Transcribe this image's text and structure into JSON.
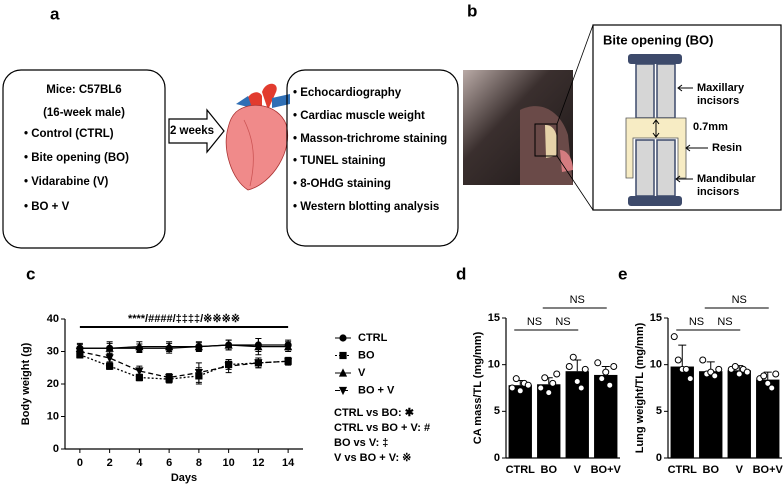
{
  "panel_labels": [
    "a",
    "b",
    "c",
    "d",
    "e"
  ],
  "diagram": {
    "mice_box": [
      "Mice: C57BL6",
      "(16-week male)",
      "• Control (CTRL)",
      "• Bite opening (BO)",
      "• Vidarabine (V)",
      "• BO + V"
    ],
    "arrow_label": "2 weeks",
    "analyses": [
      "• Echocardiography",
      "• Cardiac muscle weight",
      "• Masson-trichrome staining",
      "• TUNEL staining",
      "• 8-OHdG staining",
      "• Western blotting analysis"
    ],
    "inset": {
      "title": "Bite opening (BO)",
      "maxillary": [
        "Maxillary",
        "incisors"
      ],
      "gap": "0.7mm",
      "resin": "Resin",
      "mandibular": [
        "Mandibular",
        "incisors"
      ]
    }
  },
  "chart_data": [
    {
      "type": "line",
      "xlabel": "Days",
      "ylabel": "Body weight (g)",
      "x": [
        0,
        2,
        4,
        6,
        8,
        10,
        12,
        14
      ],
      "xlim": [
        -1,
        15
      ],
      "xticks": [
        0,
        2,
        4,
        6,
        8,
        10,
        12,
        14
      ],
      "ylim": [
        0,
        40
      ],
      "yticks": [
        0,
        10,
        20,
        30,
        40
      ],
      "annotation": "****/####/‡‡‡‡/※※※※",
      "notes": [
        "CTRL vs BO: ✱",
        "CTRL vs BO + V: #",
        "BO vs V: ‡",
        "V vs BO + V: ※"
      ],
      "series": [
        {
          "name": "CTRL",
          "color": "#000000",
          "marker": "circle",
          "dash": "solid",
          "values": [
            31,
            31,
            31,
            31,
            31.5,
            32,
            32,
            32
          ],
          "errors": [
            1.2,
            1.5,
            1.3,
            1.5,
            1.2,
            1.5,
            2,
            1.5
          ]
        },
        {
          "name": "BO",
          "color": "#000000",
          "marker": "square",
          "dash": "dotted",
          "values": [
            29,
            25.5,
            22,
            21.5,
            22.5,
            26,
            26.5,
            27
          ],
          "errors": [
            1,
            1,
            1,
            1.2,
            2.5,
            1.5,
            1.5,
            1.2
          ]
        },
        {
          "name": "V",
          "color": "#000000",
          "marker": "triangle",
          "dash": "solid",
          "values": [
            31,
            31,
            31.5,
            31.5,
            31.5,
            32,
            31.5,
            31.5
          ],
          "errors": [
            1.5,
            2,
            1.5,
            1.5,
            1.5,
            1.5,
            2.5,
            1.5
          ]
        },
        {
          "name": "BO + V",
          "color": "#000000",
          "marker": "triangle-down",
          "dash": "dashed",
          "values": [
            30,
            28,
            24,
            22,
            23.5,
            25.5,
            26.5,
            27
          ],
          "errors": [
            1,
            1.2,
            1.5,
            1.2,
            3,
            2,
            1.5,
            1
          ]
        }
      ]
    },
    {
      "type": "bar",
      "ylabel": "CA mass/TL (mg/mm)",
      "color": "#000000",
      "categories": [
        "CTRL",
        "BO",
        "V",
        "BO+V"
      ],
      "values": [
        7.8,
        7.9,
        9.3,
        8.9
      ],
      "errors": [
        0.5,
        0.7,
        1.2,
        0.9
      ],
      "points": [
        [
          7.5,
          8.5,
          7.2,
          8.0,
          7.8
        ],
        [
          7.5,
          8.6,
          7.0,
          8.0,
          9.0
        ],
        [
          9.8,
          10.8,
          8.2,
          7.5,
          9.5
        ],
        [
          10.2,
          8.5,
          9.2,
          7.8,
          9.8
        ]
      ],
      "ylim": [
        0,
        15
      ],
      "yticks": [
        0,
        5,
        10,
        15
      ],
      "brackets": [
        {
          "between": [
            "CTRL",
            "BO"
          ],
          "label": "NS"
        },
        {
          "between": [
            "BO",
            "V"
          ],
          "label": "NS"
        },
        {
          "between": [
            "BO",
            "BO+V"
          ],
          "label": "NS"
        }
      ]
    },
    {
      "type": "bar",
      "ylabel": "Lung weight/TL (mg/mm)",
      "color": "#000000",
      "categories": [
        "CTRL",
        "BO",
        "V",
        "BO+V"
      ],
      "values": [
        9.8,
        9.3,
        9.4,
        8.4
      ],
      "errors": [
        2.3,
        1.0,
        0.5,
        0.8
      ],
      "points": [
        [
          13,
          10.5,
          9.5,
          9.5,
          8.5
        ],
        [
          10.5,
          9.0,
          9.2,
          8.8,
          9.5
        ],
        [
          9.5,
          9.8,
          9.0,
          9.5,
          9.2
        ],
        [
          8.5,
          8.8,
          8.0,
          7.5,
          9.0
        ]
      ],
      "ylim": [
        0,
        15
      ],
      "yticks": [
        0,
        5,
        10,
        15
      ],
      "brackets": [
        {
          "between": [
            "CTRL",
            "BO"
          ],
          "label": "NS"
        },
        {
          "between": [
            "BO",
            "V"
          ],
          "label": "NS"
        },
        {
          "between": [
            "BO",
            "BO+V"
          ],
          "label": "NS"
        }
      ]
    }
  ]
}
